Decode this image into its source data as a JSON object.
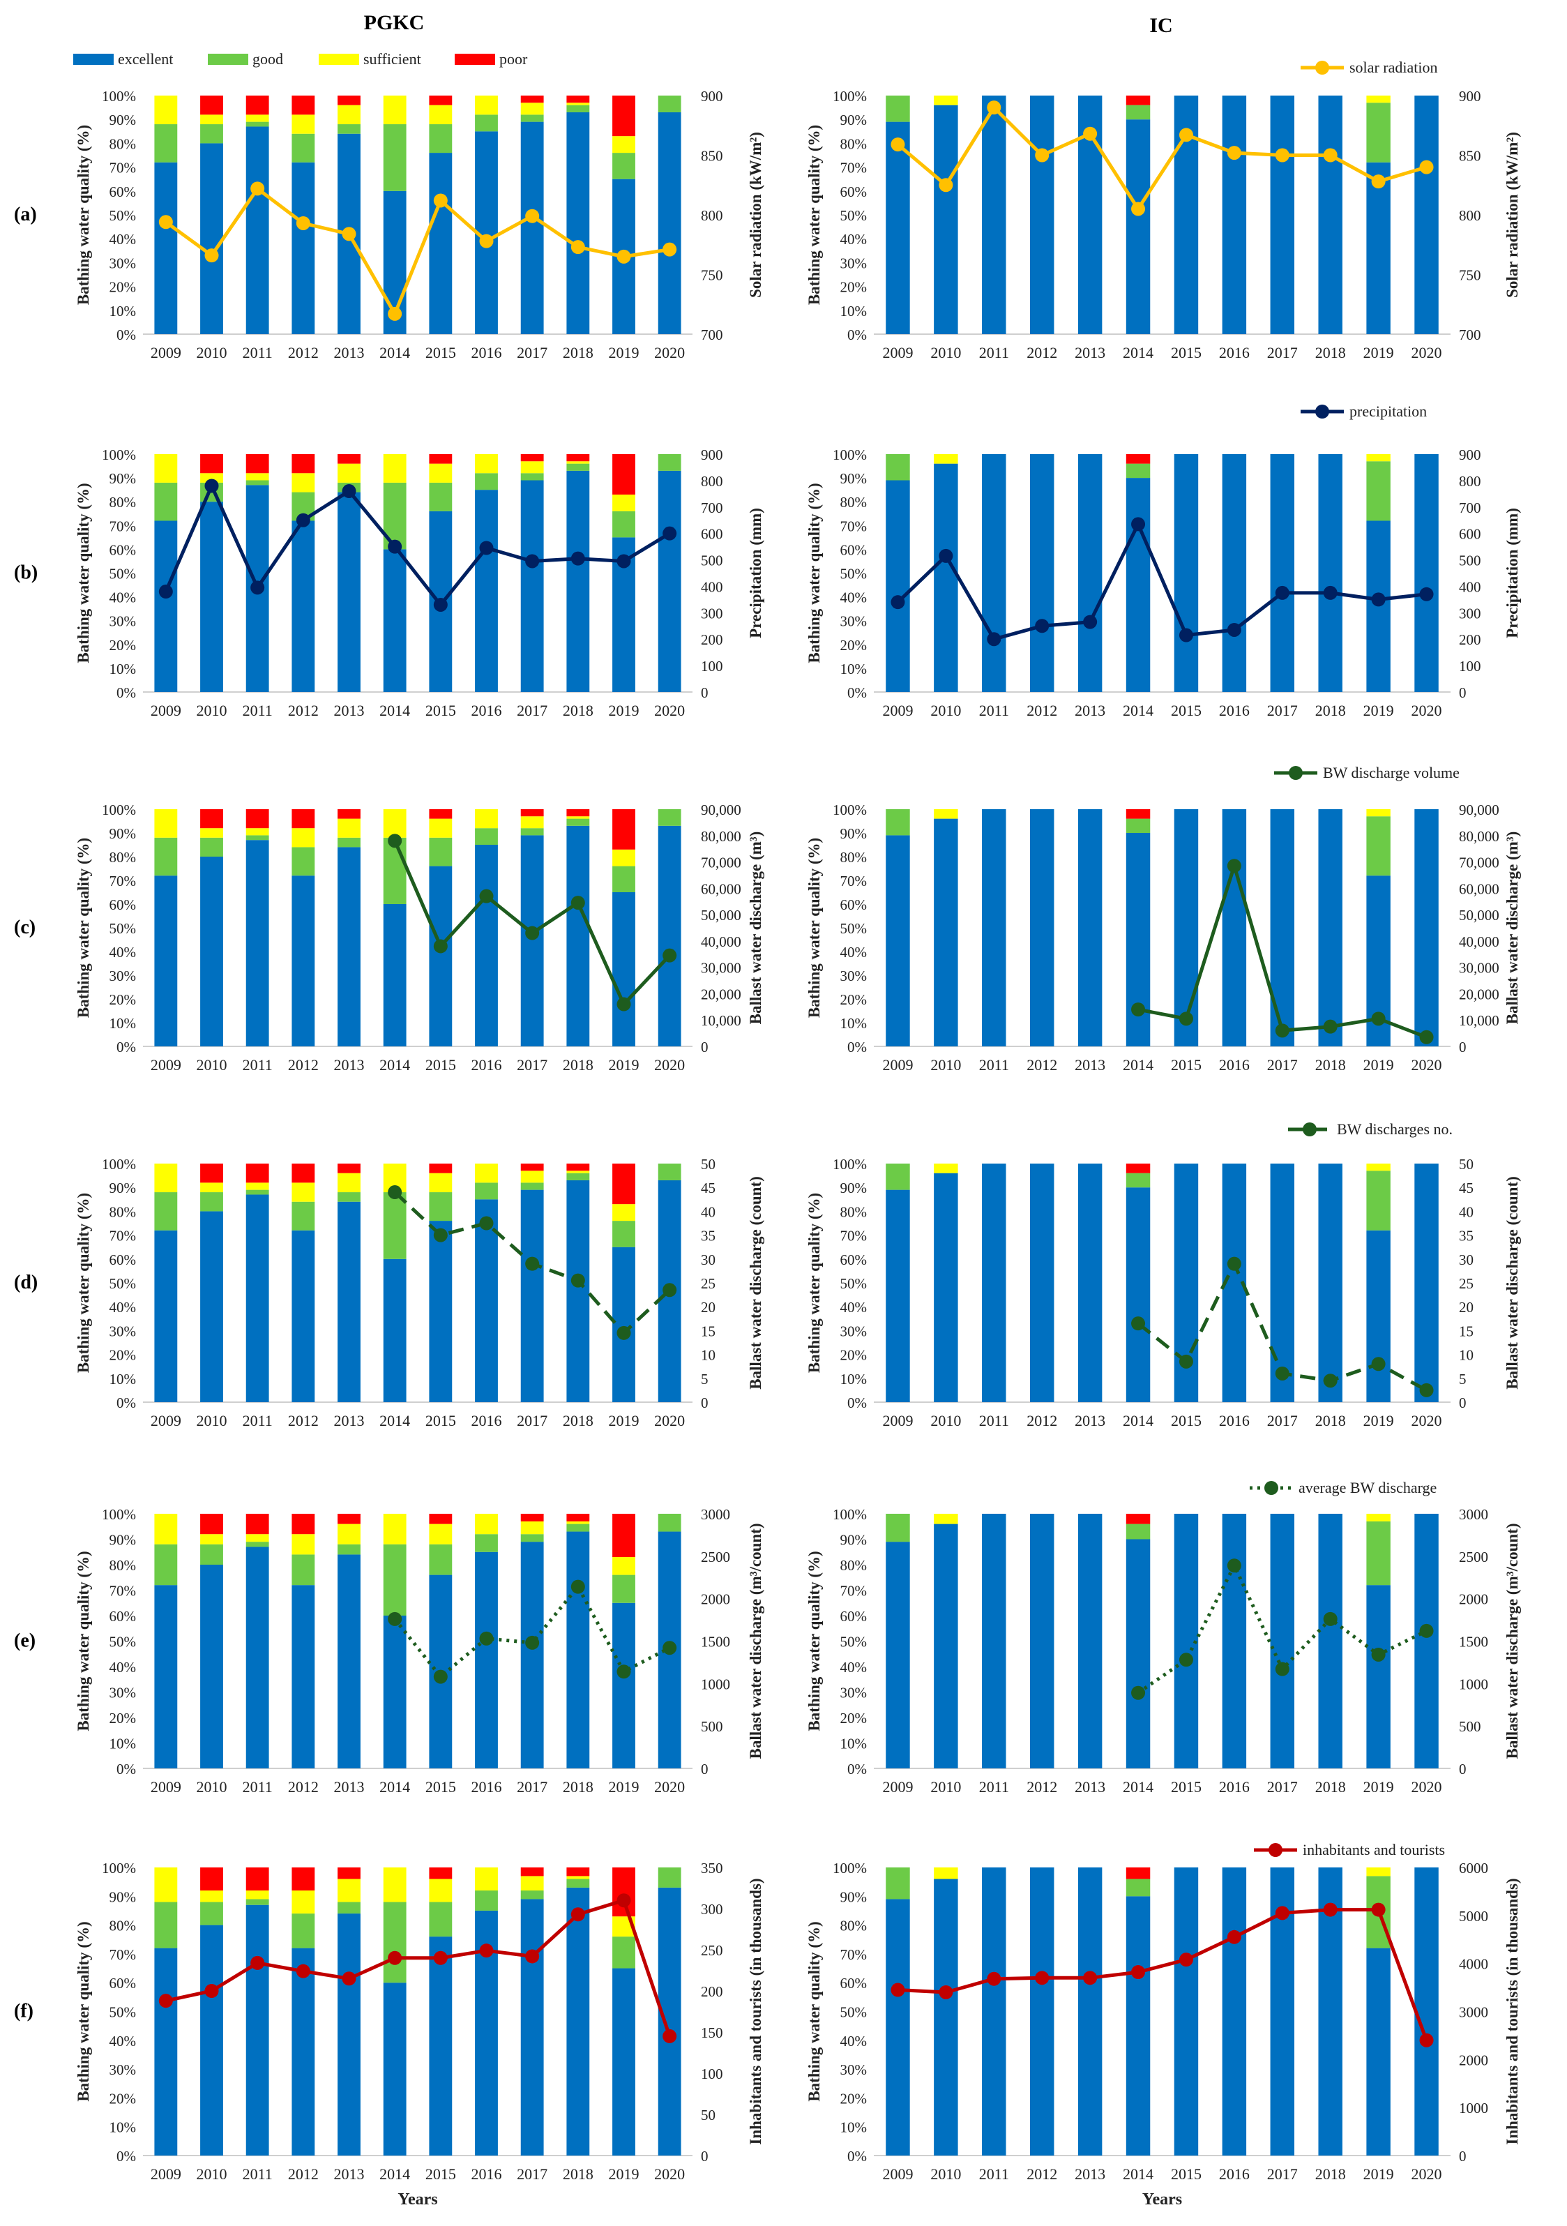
{
  "figure": {
    "titles": {
      "left": "PGKC",
      "right": "IC"
    },
    "x_axis_label": "Years",
    "y_left_label": "Bathing water quality (%)",
    "quality_legend": [
      {
        "key": "excellent",
        "label": "excellent",
        "color": "#0070C0"
      },
      {
        "key": "good",
        "label": "good",
        "color": "#6CCB47"
      },
      {
        "key": "sufficient",
        "label": "sufficient",
        "color": "#FFFF00"
      },
      {
        "key": "poor",
        "label": "poor",
        "color": "#FF0000"
      }
    ],
    "y_left_ticks": [
      "0%",
      "10%",
      "20%",
      "30%",
      "40%",
      "50%",
      "60%",
      "70%",
      "80%",
      "90%",
      "100%"
    ]
  },
  "chart_data": {
    "years": [
      "2009",
      "2010",
      "2011",
      "2012",
      "2013",
      "2014",
      "2015",
      "2016",
      "2017",
      "2018",
      "2019",
      "2020"
    ],
    "quality": {
      "PGKC": {
        "excellent": [
          72,
          80,
          87,
          72,
          84,
          60,
          76,
          85,
          89,
          93,
          65,
          93
        ],
        "good": [
          16,
          8,
          2,
          12,
          4,
          28,
          12,
          7,
          3,
          3,
          11,
          7
        ],
        "sufficient": [
          12,
          4,
          3,
          8,
          8,
          12,
          8,
          8,
          5,
          1,
          7,
          0
        ],
        "poor": [
          0,
          8,
          8,
          8,
          4,
          0,
          4,
          0,
          3,
          3,
          17,
          0
        ]
      },
      "IC": {
        "excellent": [
          89,
          96,
          100,
          100,
          100,
          90,
          100,
          100,
          100,
          100,
          72,
          100
        ],
        "good": [
          11,
          0,
          0,
          0,
          0,
          6,
          0,
          0,
          0,
          0,
          25,
          0
        ],
        "sufficient": [
          0,
          4,
          0,
          0,
          0,
          0,
          0,
          0,
          0,
          0,
          3,
          0
        ],
        "poor": [
          0,
          0,
          0,
          0,
          0,
          4,
          0,
          0,
          0,
          0,
          0,
          0
        ]
      }
    },
    "rows": [
      {
        "panel_label": "(a)",
        "right_axis_label": "Solar radiation (kW/m²)",
        "legend_label": "solar radiation",
        "line_color": "#FFC000",
        "line_style": "solid",
        "ymin": 700,
        "ymax": 900,
        "step": 50,
        "tick_labels": [
          "700",
          "750",
          "800",
          "850",
          "900"
        ],
        "PGKC": [
          794,
          766,
          822,
          793,
          784,
          717,
          812,
          778,
          799,
          773,
          765,
          771
        ],
        "IC": [
          859,
          825,
          890,
          850,
          868,
          805,
          867,
          852,
          850,
          850,
          828,
          840
        ]
      },
      {
        "panel_label": "(b)",
        "right_axis_label": "Precipitation (mm)",
        "legend_label": "precipitation",
        "line_color": "#002060",
        "line_style": "solid",
        "ymin": 0,
        "ymax": 900,
        "step": 100,
        "tick_labels": [
          "0",
          "100",
          "200",
          "300",
          "400",
          "500",
          "600",
          "700",
          "800",
          "900"
        ],
        "PGKC": [
          380,
          780,
          395,
          650,
          760,
          550,
          330,
          545,
          495,
          505,
          495,
          600
        ],
        "IC": [
          340,
          515,
          200,
          250,
          265,
          635,
          215,
          235,
          375,
          375,
          350,
          370
        ]
      },
      {
        "panel_label": "(c)",
        "right_axis_label": "Ballast water discharge (m³)",
        "legend_label": "BW discharge volume",
        "line_color": "#1E5C1E",
        "line_style": "solid",
        "ymin": 0,
        "ymax": 90000,
        "step": 10000,
        "tick_labels": [
          "0",
          "10,000",
          "20,000",
          "30,000",
          "40,000",
          "50,000",
          "60,000",
          "70,000",
          "80,000",
          "90,000"
        ],
        "PGKC": [
          null,
          null,
          null,
          null,
          null,
          78000,
          38000,
          57000,
          43000,
          54500,
          16000,
          34500
        ],
        "IC": [
          null,
          null,
          null,
          null,
          null,
          14000,
          10500,
          68500,
          6000,
          7500,
          10500,
          3500
        ]
      },
      {
        "panel_label": "(d)",
        "right_axis_label": "Ballast water discharge (count)",
        "legend_label": "BW discharges no.",
        "line_color": "#1E5C1E",
        "line_style": "dashed",
        "ymin": 0,
        "ymax": 50,
        "step": 5,
        "tick_labels": [
          "0",
          "5",
          "10",
          "15",
          "20",
          "25",
          "30",
          "35",
          "40",
          "45",
          "50"
        ],
        "PGKC": [
          null,
          null,
          null,
          null,
          null,
          44,
          35,
          37.5,
          29,
          25.5,
          14.5,
          23.5
        ],
        "IC": [
          null,
          null,
          null,
          null,
          null,
          16.5,
          8.5,
          29,
          6,
          4.5,
          8,
          2.5
        ]
      },
      {
        "panel_label": "(e)",
        "right_axis_label": "Ballast water discharge (m³/count)",
        "legend_label": "average BW discharge",
        "line_color": "#1E5C1E",
        "line_style": "dotted",
        "ymin": 0,
        "ymax": 3000,
        "step": 500,
        "tick_labels": [
          "0",
          "500",
          "1000",
          "1500",
          "2000",
          "2500",
          "3000"
        ],
        "PGKC": [
          null,
          null,
          null,
          null,
          null,
          1760,
          1080,
          1530,
          1480,
          2140,
          1140,
          1420
        ],
        "IC": [
          null,
          null,
          null,
          null,
          null,
          890,
          1280,
          2390,
          1170,
          1760,
          1340,
          1620
        ]
      },
      {
        "panel_label": "(f)",
        "right_axis_label": "Inhabitants and tourists (in thousands)",
        "legend_label": "inhabitants and tourists",
        "line_color": "#C00000",
        "line_style": "solid",
        "ymin_left": 0,
        "ymax_left": 350,
        "step_left": 50,
        "tick_labels_left": [
          "0",
          "50",
          "100",
          "150",
          "200",
          "250",
          "300",
          "350"
        ],
        "ymin_right": 0,
        "ymax_right": 6000,
        "step_right": 1000,
        "tick_labels_right": [
          "0",
          "1000",
          "2000",
          "3000",
          "4000",
          "5000",
          "6000"
        ],
        "PGKC": [
          188,
          200,
          234,
          224,
          215,
          240,
          240,
          249,
          242,
          293,
          310,
          145
        ],
        "IC": [
          3450,
          3400,
          3680,
          3700,
          3700,
          3820,
          4080,
          4550,
          5050,
          5120,
          5120,
          2400
        ]
      }
    ]
  }
}
